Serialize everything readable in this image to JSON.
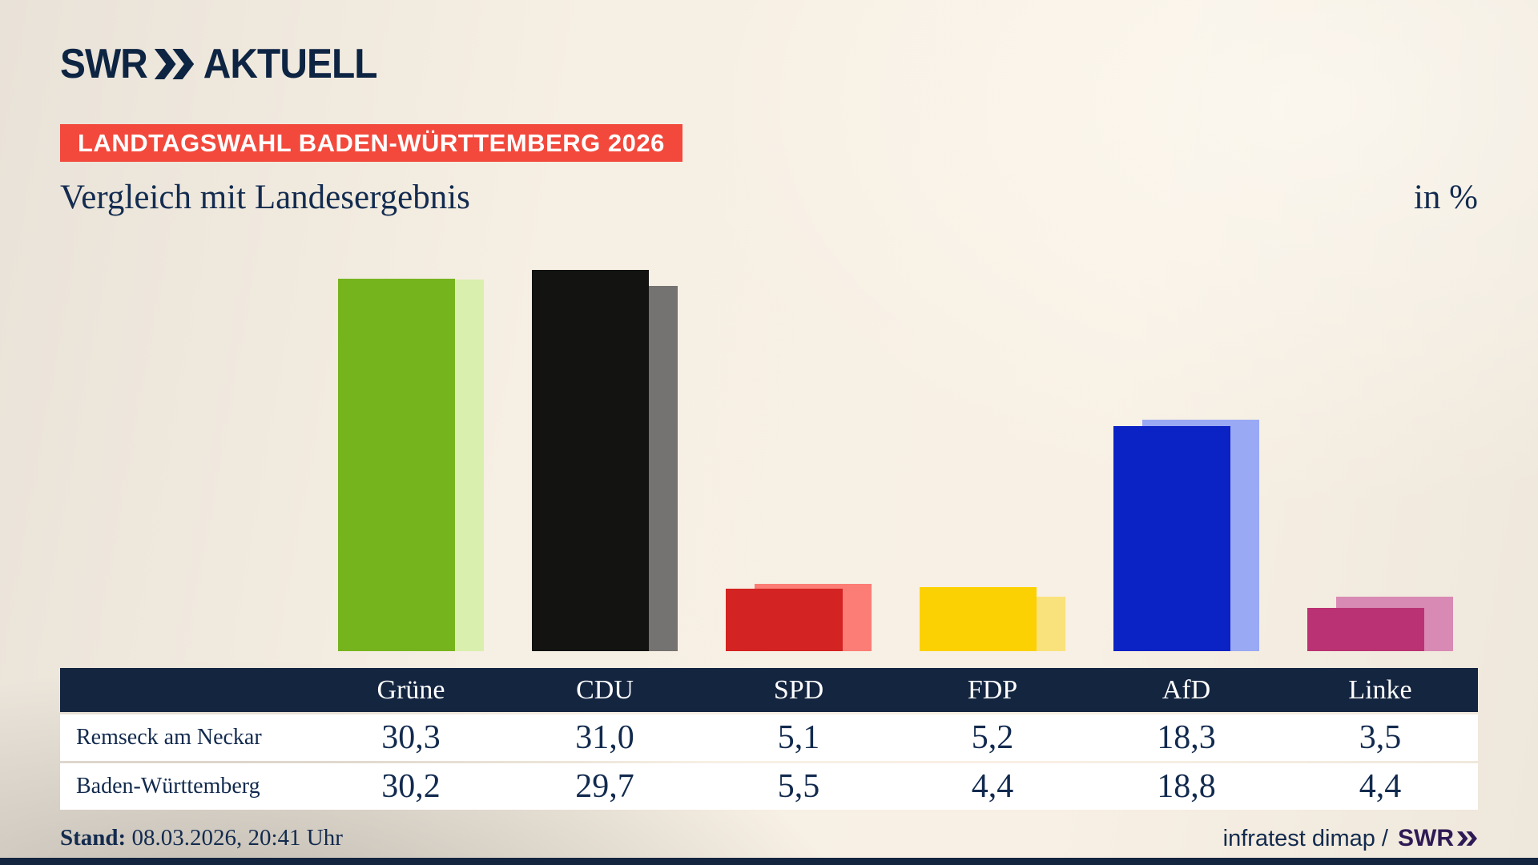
{
  "brand": {
    "logo_swr": "SWR",
    "logo_aktuell": "AKTUELL",
    "chevrons_icon": "double-chevron-right"
  },
  "header": {
    "badge": "LANDTAGSWAHL BADEN-WÜRTTEMBERG 2026",
    "title": "Vergleich mit Landesergebnis",
    "unit": "in %"
  },
  "chart_data": {
    "type": "bar",
    "categories": [
      "Grüne",
      "CDU",
      "SPD",
      "FDP",
      "AfD",
      "Linke"
    ],
    "series": [
      {
        "name": "Remseck am Neckar",
        "values": [
          30.3,
          31.0,
          5.1,
          5.2,
          18.3,
          3.5
        ]
      },
      {
        "name": "Baden-Württemberg",
        "values": [
          30.2,
          29.7,
          5.5,
          4.4,
          18.8,
          4.4
        ]
      }
    ],
    "colors_main": [
      "#76b41e",
      "#131312",
      "#d32322",
      "#fcd103",
      "#0b22c5",
      "#ba3274"
    ],
    "colors_light": [
      "#d9efad",
      "#757371",
      "#fb7d75",
      "#f9e27c",
      "#9aa9f3",
      "#d98ab4"
    ],
    "ylim": [
      0,
      31
    ],
    "grid": false,
    "legend_position": "table-rows",
    "title": "Vergleich mit Landesergebnis",
    "unit": "in %",
    "value_format": "decimal-comma"
  },
  "footer": {
    "stand_label": "Stand:",
    "stand_value": "08.03.2026, 20:41 Uhr",
    "source": "infratest dimap /",
    "source_logo": "SWR"
  }
}
